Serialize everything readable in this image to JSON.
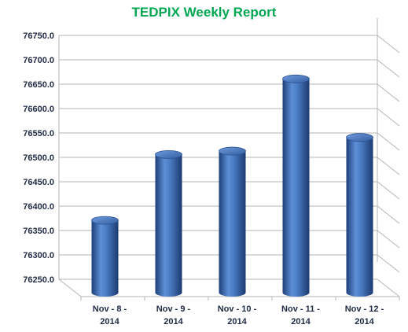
{
  "chart_data": {
    "type": "bar",
    "title": "TEDPIX Weekly Report",
    "categories": [
      [
        "Nov - 8 -",
        "2014"
      ],
      [
        "Nov - 9 -",
        "2014"
      ],
      [
        "Nov - 10 -",
        "2014"
      ],
      [
        "Nov - 11 -",
        "2014"
      ],
      [
        "Nov - 12 -",
        "2014"
      ]
    ],
    "values": [
      76395,
      76530,
      76537,
      76685,
      76565
    ],
    "ylim": [
      76250,
      76750
    ],
    "yticks": [
      "76250.0",
      "76300.0",
      "76350.0",
      "76400.0",
      "76450.0",
      "76500.0",
      "76550.0",
      "76600.0",
      "76650.0",
      "76700.0",
      "76750.0"
    ],
    "grid": true,
    "legend": "none",
    "colors": {
      "bar": "#3f6fb5",
      "title": "#00a651",
      "grid": "#b5b5b5",
      "text": "#1f2a44"
    }
  }
}
